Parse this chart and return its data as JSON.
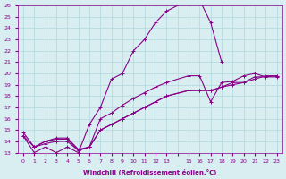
{
  "xlabel": "Windchill (Refroidissement éolien,°C)",
  "background_color": "#d8eef0",
  "line_color": "#880088",
  "grid_color": "#b0d8dc",
  "xtick_labels": [
    "0",
    "1",
    "2",
    "3",
    "4",
    "5",
    "6",
    "7",
    "8",
    "9",
    "10",
    "11",
    "12",
    "13",
    "",
    "15",
    "16",
    "17",
    "18",
    "19",
    "20",
    "21",
    "22",
    "23"
  ],
  "ytick_labels": [
    "13",
    "14",
    "15",
    "16",
    "17",
    "18",
    "19",
    "20",
    "21",
    "22",
    "23",
    "24",
    "25",
    "26"
  ],
  "ylim": [
    13,
    26
  ],
  "curves": [
    {
      "xi": [
        0,
        1,
        2,
        3,
        4,
        5,
        6,
        7,
        8,
        9,
        10,
        11,
        12,
        13,
        15,
        16,
        17,
        18
      ],
      "y": [
        14.5,
        13.0,
        13.5,
        13.0,
        13.5,
        13.0,
        15.5,
        17.0,
        19.5,
        20.0,
        22.0,
        23.0,
        24.5,
        25.5,
        26.5,
        26.5,
        24.5,
        21.0
      ]
    },
    {
      "xi": [
        1,
        2,
        3,
        4,
        5,
        6,
        7,
        8,
        9,
        10,
        11,
        12,
        13,
        15,
        16,
        17,
        18,
        19,
        20,
        21,
        22,
        23
      ],
      "y": [
        13.5,
        13.8,
        14.0,
        14.0,
        13.2,
        13.5,
        16.0,
        16.5,
        17.2,
        17.8,
        18.3,
        18.8,
        19.2,
        19.8,
        19.8,
        17.5,
        19.2,
        19.3,
        19.8,
        20.0,
        19.7,
        19.8
      ]
    },
    {
      "xi": [
        0,
        1,
        2,
        3,
        4,
        5,
        6,
        7,
        8,
        9,
        10,
        11,
        12,
        13,
        15,
        16,
        17,
        18,
        19,
        20,
        21,
        22,
        23
      ],
      "y": [
        14.5,
        13.5,
        14.0,
        14.2,
        14.2,
        13.2,
        13.5,
        15.0,
        15.5,
        16.0,
        16.5,
        17.0,
        17.5,
        18.0,
        18.5,
        18.5,
        18.5,
        18.8,
        19.0,
        19.2,
        19.5,
        19.8,
        19.8
      ]
    },
    {
      "xi": [
        0,
        1,
        2,
        3,
        4,
        5,
        6,
        7,
        8,
        9,
        10,
        11,
        12,
        13,
        15,
        16,
        17,
        18,
        19,
        20,
        21,
        22,
        23
      ],
      "y": [
        14.8,
        13.5,
        14.0,
        14.3,
        14.3,
        13.3,
        13.5,
        15.0,
        15.5,
        16.0,
        16.5,
        17.0,
        17.5,
        18.0,
        18.5,
        18.5,
        18.5,
        18.8,
        19.2,
        19.2,
        19.7,
        19.7,
        19.7
      ]
    }
  ]
}
